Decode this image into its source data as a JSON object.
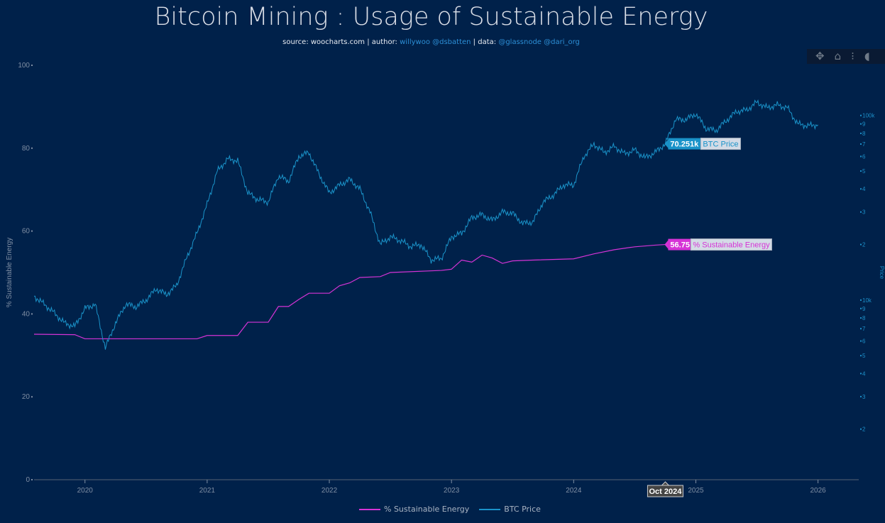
{
  "title": "Bitcoin Mining : Usage of Sustainable Energy",
  "subtitle": {
    "source_label": "source: woocharts.com | author:",
    "author": "willywoo @dsbatten",
    "data_label": "| data:",
    "data_sources": "@glassnode @dari_org"
  },
  "modebar": {
    "pan": "pan-icon",
    "home": "home-icon",
    "spike": "spikelines-icon",
    "more": "more-icon"
  },
  "hover": {
    "btc_value": "70.251k",
    "btc_label": "BTC Price",
    "energy_value": "56.75",
    "energy_label": "% Sustainable Energy",
    "date_label": "Oct 2024"
  },
  "chart_data": {
    "type": "line",
    "title": "Bitcoin Mining : Usage of Sustainable Energy",
    "xlabel": "",
    "ylabel": "% Sustainable Energy",
    "y2label": "Price",
    "xlim": [
      "2019-08",
      "2026-05"
    ],
    "ylim": [
      0,
      100
    ],
    "y2scale": "log",
    "y2lim": [
      1064,
      187000
    ],
    "x_ticks": [
      "2020",
      "2021",
      "2022",
      "2023",
      "2024",
      "2025",
      "2026"
    ],
    "y_ticks": [
      "0",
      "20",
      "40",
      "60",
      "80",
      "100"
    ],
    "y2_ticks": [
      {
        "v": 2000,
        "t": "2"
      },
      {
        "v": 3000,
        "t": "3"
      },
      {
        "v": 4000,
        "t": "4"
      },
      {
        "v": 5000,
        "t": "5"
      },
      {
        "v": 6000,
        "t": "6"
      },
      {
        "v": 7000,
        "t": "7"
      },
      {
        "v": 8000,
        "t": "8"
      },
      {
        "v": 9000,
        "t": "9"
      },
      {
        "v": 10000,
        "t": "10k"
      },
      {
        "v": 20000,
        "t": "2"
      },
      {
        "v": 30000,
        "t": "3"
      },
      {
        "v": 40000,
        "t": "4"
      },
      {
        "v": 50000,
        "t": "5"
      },
      {
        "v": 60000,
        "t": "6"
      },
      {
        "v": 70000,
        "t": "7"
      },
      {
        "v": 80000,
        "t": "8"
      },
      {
        "v": 90000,
        "t": "9"
      },
      {
        "v": 100000,
        "t": "100k"
      }
    ],
    "grid": false,
    "legend": "bottom",
    "colors": {
      "energy": "#d633d6",
      "btc": "#1a93c9"
    },
    "series": [
      {
        "name": "% Sustainable Energy",
        "axis": "left",
        "x": [
          "2019-08",
          "2019-12",
          "2020-01",
          "2020-12",
          "2021-01",
          "2021-04",
          "2021-05",
          "2021-07",
          "2021-08",
          "2021-09",
          "2021-10",
          "2021-11",
          "2022-01",
          "2022-02",
          "2022-03",
          "2022-04",
          "2022-06",
          "2022-07",
          "2022-12",
          "2023-01",
          "2023-02",
          "2023-03",
          "2023-04",
          "2023-05",
          "2023-06",
          "2023-07",
          "2023-09",
          "2024-01",
          "2024-03",
          "2024-05",
          "2024-07",
          "2024-09",
          "2024-10"
        ],
        "y": [
          35.1,
          35.0,
          34.0,
          34.0,
          34.8,
          34.8,
          38.0,
          38.0,
          41.8,
          41.8,
          43.5,
          45.0,
          45.0,
          46.8,
          47.5,
          48.8,
          49.0,
          50.0,
          50.5,
          50.8,
          53.0,
          52.5,
          54.2,
          53.5,
          52.2,
          52.8,
          53.0,
          53.3,
          54.5,
          55.5,
          56.2,
          56.6,
          56.75
        ]
      },
      {
        "name": "BTC Price",
        "axis": "right",
        "x": [
          "2019-08",
          "2019-09",
          "2019-10",
          "2019-11",
          "2019-12",
          "2020-01",
          "2020-02",
          "2020-03",
          "2020-04",
          "2020-05",
          "2020-06",
          "2020-07",
          "2020-08",
          "2020-09",
          "2020-10",
          "2020-11",
          "2020-12",
          "2021-01",
          "2021-02",
          "2021-03",
          "2021-04",
          "2021-05",
          "2021-06",
          "2021-07",
          "2021-08",
          "2021-09",
          "2021-10",
          "2021-11",
          "2021-12",
          "2022-01",
          "2022-02",
          "2022-03",
          "2022-04",
          "2022-05",
          "2022-06",
          "2022-07",
          "2022-08",
          "2022-09",
          "2022-10",
          "2022-11",
          "2022-12",
          "2023-01",
          "2023-02",
          "2023-03",
          "2023-04",
          "2023-05",
          "2023-06",
          "2023-07",
          "2023-08",
          "2023-09",
          "2023-10",
          "2023-11",
          "2023-12",
          "2024-01",
          "2024-02",
          "2024-03",
          "2024-04",
          "2024-05",
          "2024-06",
          "2024-07",
          "2024-08",
          "2024-09",
          "2024-10",
          "2024-11",
          "2024-12",
          "2025-01",
          "2025-02",
          "2025-03",
          "2025-04",
          "2025-05",
          "2025-06",
          "2025-07",
          "2025-08",
          "2025-09",
          "2025-10",
          "2025-11",
          "2025-12",
          "2026-01"
        ],
        "y": [
          10500,
          9500,
          8500,
          7500,
          7200,
          9000,
          9500,
          5500,
          7500,
          9500,
          9200,
          10000,
          11500,
          10700,
          12000,
          17000,
          23000,
          33000,
          50000,
          58000,
          57000,
          38000,
          35000,
          34000,
          47000,
          44000,
          60000,
          63000,
          48000,
          38000,
          42000,
          45000,
          40000,
          30000,
          20000,
          22000,
          21000,
          19500,
          20000,
          16500,
          16800,
          22000,
          23000,
          28000,
          29000,
          27000,
          30000,
          29500,
          26000,
          26500,
          34000,
          37000,
          42000,
          42000,
          60000,
          70000,
          63000,
          68000,
          62000,
          65000,
          59000,
          63000,
          70251,
          95000,
          95000,
          102000,
          85000,
          83000,
          94000,
          105000,
          107000,
          118000,
          110000,
          114000,
          110000,
          90000,
          88000,
          89000
        ]
      }
    ]
  }
}
